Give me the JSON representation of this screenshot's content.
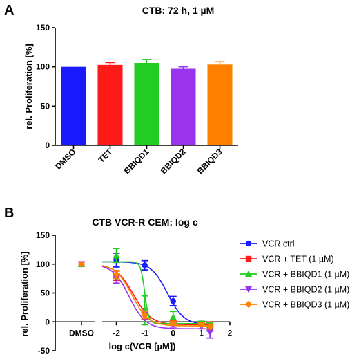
{
  "panels": {
    "a_letter": "A",
    "b_letter": "B"
  },
  "chart_data": [
    {
      "type": "bar",
      "title": "CTB: 72 h, 1 µM",
      "xlabel": "",
      "ylabel": "rel. Proliferation [%]",
      "ylim": [
        0,
        150
      ],
      "yticks": [
        0,
        50,
        100,
        150
      ],
      "categories": [
        "DMSO",
        "TET",
        "BBIQD1",
        "BBIQD2",
        "BBIQD3"
      ],
      "values": [
        100,
        102.5,
        105,
        97.5,
        103
      ],
      "errors": [
        0,
        3,
        4.5,
        2.5,
        3.5
      ],
      "colors": [
        "#1a1aff",
        "#ff1a1a",
        "#22cc22",
        "#9933ee",
        "#ff8000"
      ]
    },
    {
      "type": "line",
      "title": "CTB VCR-R CEM: log c",
      "xlabel": "log c(VCR [µM])",
      "ylabel": "rel. Proliferation [%]",
      "ylim": [
        -50,
        150
      ],
      "yticks": [
        -50,
        0,
        50,
        100,
        150
      ],
      "xlim": [
        -2.5,
        2
      ],
      "xticks": [
        -2,
        -1,
        0,
        1,
        2
      ],
      "control_label": "DMSO",
      "control_value": 100,
      "legend_position": "right",
      "series": [
        {
          "name": "VCR ctrl",
          "color": "#1a1aff",
          "marker": "circle",
          "x": [
            -2,
            -1,
            0,
            1,
            1.3
          ],
          "y": [
            107,
            98,
            36,
            -3,
            -10
          ],
          "err": [
            12,
            8,
            8,
            3,
            6
          ],
          "fit": {
            "top": 104,
            "bottom": -5,
            "logec50": -0.2,
            "hill": -1.5
          }
        },
        {
          "name": "VCR + TET (1 µM)",
          "color": "#ff1a1a",
          "marker": "square",
          "x": [
            -2,
            -1,
            0,
            1,
            1.3
          ],
          "y": [
            80,
            15,
            -1,
            -3,
            -4
          ],
          "err": [
            8,
            8,
            3,
            3,
            3
          ],
          "fit": {
            "top": 100,
            "bottom": -5,
            "logec50": -1.4,
            "hill": -1.4
          }
        },
        {
          "name": "VCR + BBIQD1 (1 µM)",
          "color": "#22cc22",
          "marker": "triangle-up",
          "x": [
            -2,
            -1,
            0,
            1,
            1.3
          ],
          "y": [
            115,
            20,
            8,
            -2,
            -5
          ],
          "err": [
            12,
            25,
            10,
            3,
            4
          ],
          "fit": {
            "top": 104,
            "bottom": -3,
            "logec50": -1.0,
            "hill": -6
          }
        },
        {
          "name": "VCR + BBIQD2 (1 µM)",
          "color": "#9933ee",
          "marker": "triangle-down",
          "x": [
            -2,
            -1,
            0,
            1,
            1.3
          ],
          "y": [
            75,
            10,
            -5,
            -8,
            -18
          ],
          "err": [
            8,
            6,
            4,
            4,
            10
          ],
          "fit": {
            "top": 100,
            "bottom": -12,
            "logec50": -1.55,
            "hill": -1.5
          }
        },
        {
          "name": "VCR + BBIQD3 (1 µM)",
          "color": "#ff8000",
          "marker": "diamond",
          "x": [
            -2,
            -1,
            0,
            1,
            1.3
          ],
          "y": [
            82,
            12,
            -2,
            -5,
            -8
          ],
          "err": [
            7,
            6,
            3,
            3,
            4
          ],
          "fit": {
            "top": 100,
            "bottom": -7,
            "logec50": -1.45,
            "hill": -1.5
          }
        }
      ]
    }
  ]
}
